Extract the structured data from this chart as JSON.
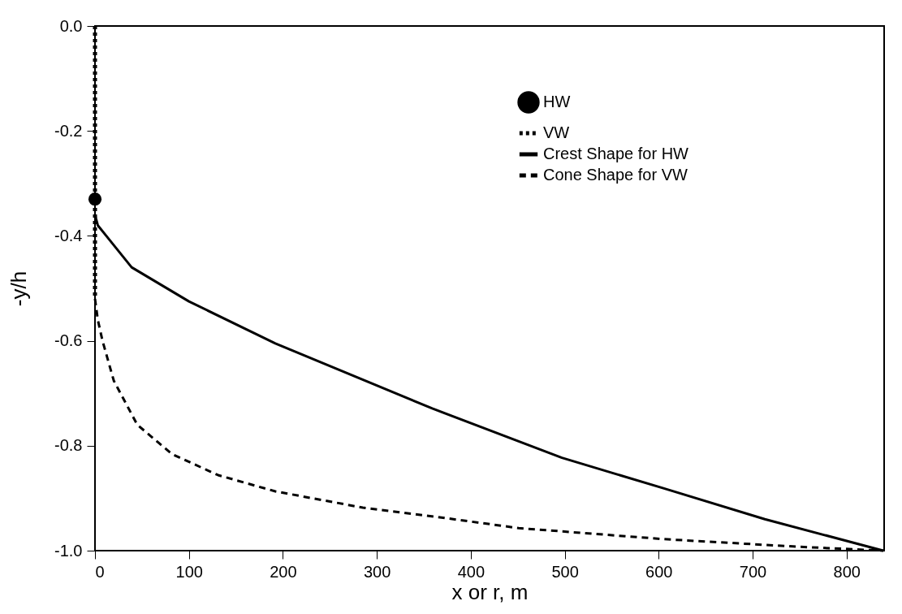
{
  "chart_data": {
    "type": "line",
    "xlabel": "x or r, m",
    "ylabel": "-y/h",
    "xlim": [
      0,
      840
    ],
    "xticks": [
      0,
      100,
      200,
      300,
      400,
      500,
      600,
      700,
      800
    ],
    "ylim": [
      -1.0,
      0.0
    ],
    "yticks": [
      {
        "value": -1.0,
        "label": "-1.0"
      },
      -0.8,
      -0.6,
      -0.4,
      -0.2,
      {
        "value": 0,
        "label": "0.0"
      }
    ],
    "grid": false,
    "legend": "top right",
    "series": [
      {
        "name": "HW",
        "type": "scatter",
        "marker": "circle",
        "color": "#000000",
        "x": [
          0
        ],
        "values": [
          -0.33
        ]
      },
      {
        "name": "VW",
        "type": "line",
        "line_style": "dotted",
        "color": "#000000",
        "x": [
          0,
          0
        ],
        "values": [
          0,
          -0.52
        ]
      },
      {
        "name": "Crest Shape for HW",
        "type": "line",
        "line_style": "solid",
        "color": "#000000",
        "x": [
          0,
          3,
          12,
          39,
          100,
          192,
          359,
          497,
          605,
          713,
          839
        ],
        "values": [
          -0.36,
          -0.38,
          -0.4,
          -0.46,
          -0.525,
          -0.605,
          -0.729,
          -0.823,
          -0.881,
          -0.94,
          -1.0
        ]
      },
      {
        "name": "Cone Shape for VW",
        "type": "line",
        "line_style": "dashed",
        "color": "#000000",
        "x": [
          0,
          3,
          8,
          20,
          45,
          82,
          131,
          192,
          285,
          365,
          451,
          605,
          743,
          839
        ],
        "values": [
          -0.52,
          -0.56,
          -0.6,
          -0.676,
          -0.76,
          -0.816,
          -0.856,
          -0.887,
          -0.918,
          -0.936,
          -0.957,
          -0.978,
          -0.992,
          -1.0
        ]
      }
    ]
  }
}
